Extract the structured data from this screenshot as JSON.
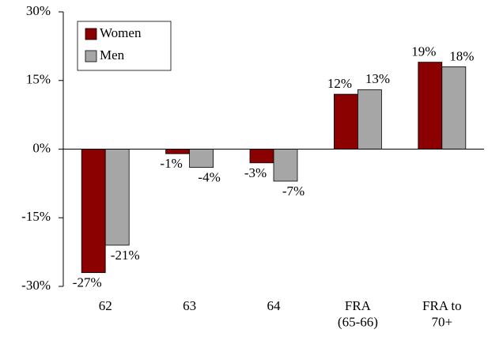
{
  "chart_data": {
    "type": "bar",
    "categories": [
      "62",
      "63",
      "64",
      "FRA\n(65-66)",
      "FRA to\n70+"
    ],
    "series": [
      {
        "name": "Women",
        "color": "#8b0000",
        "values": [
          -27,
          -1,
          -3,
          12,
          19
        ],
        "value_labels": [
          "-27%",
          "-1%",
          "-3%",
          "12%",
          "19%"
        ]
      },
      {
        "name": "Men",
        "color": "#a6a6a6",
        "values": [
          -21,
          -4,
          -7,
          13,
          18
        ],
        "value_labels": [
          "-21%",
          "-4%",
          "-7%",
          "13%",
          "18%"
        ]
      }
    ],
    "ylim": [
      -30,
      30
    ],
    "yticks": [
      {
        "value": -30,
        "label": "-30%"
      },
      {
        "value": -15,
        "label": "-15%"
      },
      {
        "value": 0,
        "label": "0%"
      },
      {
        "value": 15,
        "label": "15%"
      },
      {
        "value": 30,
        "label": "30%"
      }
    ],
    "grid": false,
    "legend": "upper left"
  }
}
